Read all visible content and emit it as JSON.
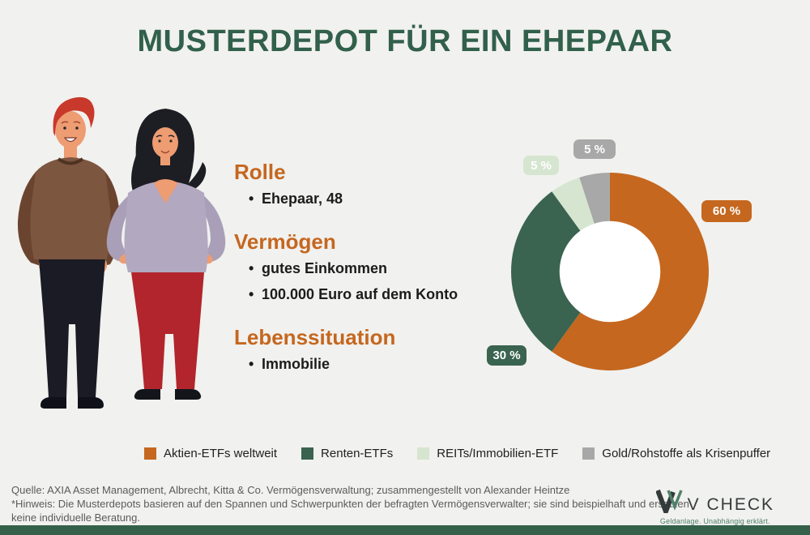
{
  "title": "MUSTERDEPOT FÜR EIN EHEPAAR",
  "profile": {
    "sections": [
      {
        "heading": "Rolle",
        "items": [
          "Ehepaar, 48"
        ]
      },
      {
        "heading": "Vermögen",
        "items": [
          "gutes Einkommen",
          "100.000 Euro auf dem Konto"
        ]
      },
      {
        "heading": "Lebenssituation",
        "items": [
          "Immobilie"
        ]
      }
    ]
  },
  "chart_data": {
    "type": "pie",
    "subtype": "donut",
    "categories": [
      "Aktien-ETFs weltweit",
      "Renten-ETFs",
      "REITs/Immobilien-ETF",
      "Gold/Rohstoffe als Krisenpuffer"
    ],
    "values": [
      60,
      30,
      5,
      5
    ],
    "labels": [
      "60 %",
      "30 %",
      "5 %",
      "5 %"
    ],
    "colors": [
      "#c5671f",
      "#3a6350",
      "#d6e5cf",
      "#a8a8a8"
    ],
    "start_angle_deg": 0,
    "direction": "clockwise",
    "inner_radius_ratio": 0.51,
    "hole_color": "#ffffff",
    "legend_position": "bottom"
  },
  "footer": {
    "lines": [
      "Quelle: AXIA Asset Management, Albrecht, Kitta & Co. Vermögensverwaltung; zusammengestellt von Alexander Heintze",
      "*Hinweis: Die Musterdepots basieren auf den Spannen und Schwerpunkten der befragten Vermögensverwalter; sie sind beispielhaft und ersetzen",
      "keine individuelle Beratung."
    ]
  },
  "logo": {
    "name": "V CHECK",
    "tagline": "Geldanlage. Unabhängig erklärt."
  },
  "colors": {
    "background": "#f1f1ef",
    "title": "#31604b",
    "accent_orange": "#c5671f",
    "accent_green": "#3a6350",
    "bottom_bar": "#356049",
    "footer_text": "#5b5b5d"
  }
}
